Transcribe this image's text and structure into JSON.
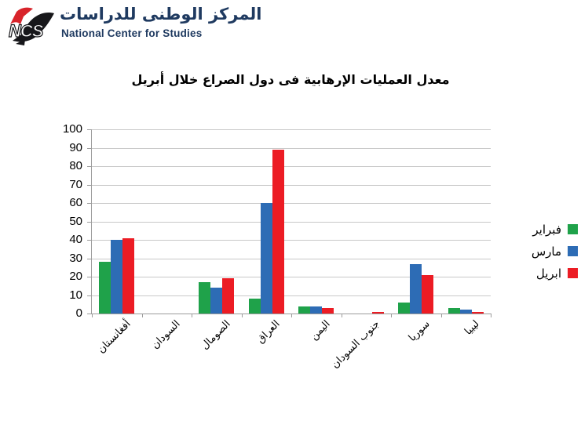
{
  "brand": {
    "logo_text": "NCS",
    "name_ar": "المركز الوطنى للدراسات",
    "name_en": "National Center for Studies"
  },
  "colors": {
    "brand_navy": "#1f3a60",
    "logo_red": "#d8242b",
    "logo_black": "#17171a",
    "grid": "#c8c8c8",
    "axis": "#9c9c9c"
  },
  "chart_data": {
    "type": "bar",
    "title": "معدل العمليات الإرهابية فى دول الصراع خلال أبريل",
    "categories": [
      "أفغانستان",
      "السودان",
      "الصومال",
      "العراق",
      "اليمن",
      "جنوب السودان",
      "سوريا",
      "ليبيا"
    ],
    "series": [
      {
        "name": "فبراير",
        "color": "#1fa24a",
        "values": [
          28,
          0,
          17,
          8,
          4,
          0,
          6,
          3
        ]
      },
      {
        "name": "مارس",
        "color": "#2d6cb5",
        "values": [
          40,
          0,
          14,
          60,
          4,
          0,
          27,
          2
        ]
      },
      {
        "name": "ابريل",
        "color": "#ec1c24",
        "values": [
          41,
          0,
          19,
          89,
          3,
          1,
          21,
          1
        ]
      }
    ],
    "xlabel": "",
    "ylabel": "",
    "ylim": [
      0,
      100
    ],
    "ytick_step": 10,
    "grid": true,
    "legend_position": "right"
  }
}
